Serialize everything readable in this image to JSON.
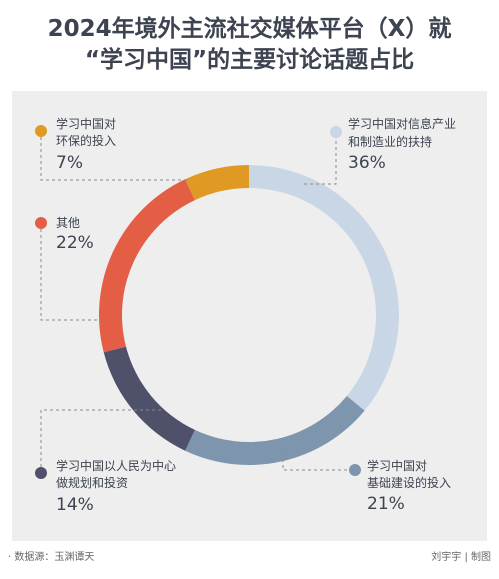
{
  "chart_data": {
    "type": "pie",
    "style": "donut",
    "title": "2024年境外主流社交媒体平台（X）就“学习中国”的主要讨论话题占比",
    "title_line1": "2024年境外主流社交媒体平台（X）就",
    "title_line2": "“学习中国”的主要讨论话题占比",
    "slices": [
      {
        "label_line1": "学习中国对信息产业",
        "label_line2": "和制造业的扶持",
        "value": 36,
        "value_label": "36%",
        "color": "#c9d6e5"
      },
      {
        "label_line1": "学习中国对",
        "label_line2": "基础建设的投入",
        "value": 21,
        "value_label": "21%",
        "color": "#7e95ae"
      },
      {
        "label_line1": "学习中国以人民为中心",
        "label_line2": "做规划和投资",
        "value": 14,
        "value_label": "14%",
        "color": "#4f5069"
      },
      {
        "label_line1": "其他",
        "label_line2": "",
        "value": 22,
        "value_label": "22%",
        "color": "#e35e45"
      },
      {
        "label_line1": "学习中国对",
        "label_line2": "环保的投入",
        "value": 7,
        "value_label": "7%",
        "color": "#e09a24"
      }
    ],
    "legend": "none"
  },
  "footer": {
    "source": "· 数据源：玉渊谭天",
    "credit": "刘宇宇 | 制图"
  }
}
